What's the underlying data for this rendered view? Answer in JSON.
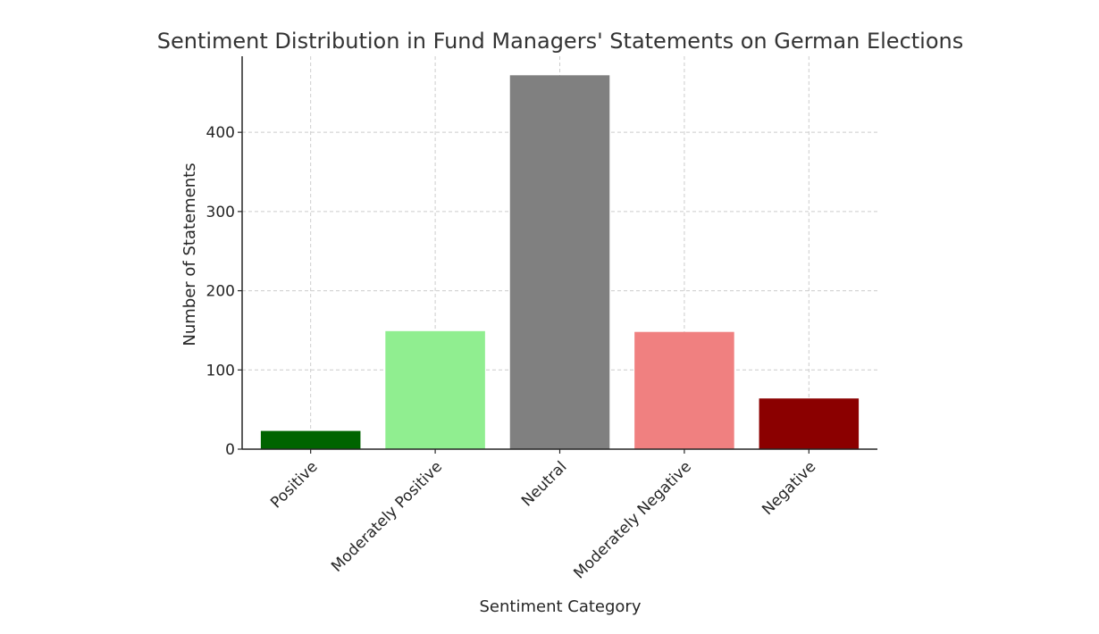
{
  "chart_data": {
    "type": "bar",
    "title": "Sentiment Distribution in Fund Managers' Statements on German Elections",
    "xlabel": "Sentiment Category",
    "ylabel": "Number of Statements",
    "categories": [
      "Positive",
      "Moderately Positive",
      "Neutral",
      "Moderately Negative",
      "Negative"
    ],
    "values": [
      23,
      149,
      472,
      148,
      64
    ],
    "colors": [
      "#006400",
      "#90ee90",
      "#808080",
      "#f08080",
      "#8b0000"
    ],
    "ylim": [
      0,
      496
    ],
    "yticks": [
      0,
      100,
      200,
      300,
      400
    ],
    "grid": true,
    "legend": "none"
  }
}
